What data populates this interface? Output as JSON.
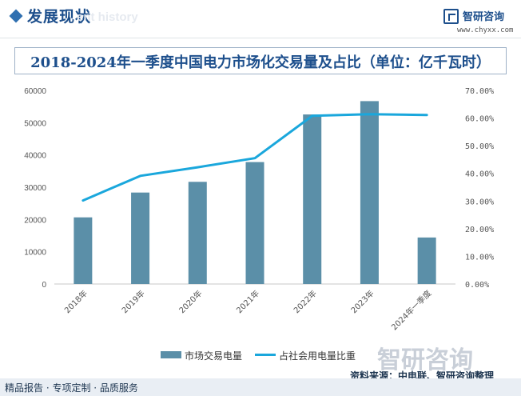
{
  "header": {
    "title": "发展现状",
    "ghost_text": "ent history",
    "brand_name": "智研咨询",
    "brand_url": "www.chyxx.com"
  },
  "chart_data": {
    "type": "bar",
    "title": "2018-2024年一季度中国电力市场化交易量及占比（单位：亿千瓦时）",
    "categories": [
      "2018年",
      "2019年",
      "2020年",
      "2021年",
      "2022年",
      "2023年",
      "2024年一季度"
    ],
    "series": [
      {
        "name": "市场交易电量",
        "type": "bar",
        "axis": "left",
        "values": [
          20654,
          28344,
          31663,
          37787,
          52543,
          56679,
          14415
        ]
      },
      {
        "name": "占社会用电量比重",
        "type": "line",
        "axis": "right",
        "values": [
          30.2,
          39.1,
          42.2,
          45.5,
          60.8,
          61.4,
          61.1
        ]
      }
    ],
    "y_left": {
      "min": 0,
      "max": 60000,
      "ticks": [
        "0",
        "10000",
        "20000",
        "30000",
        "40000",
        "50000",
        "60000"
      ]
    },
    "y_right": {
      "min": 0,
      "max": 70,
      "ticks": [
        "0.00%",
        "10.00%",
        "20.00%",
        "30.00%",
        "40.00%",
        "50.00%",
        "60.00%",
        "70.00%"
      ]
    },
    "grid": false,
    "legend_position": "bottom",
    "colors": {
      "bar": "#5b8fa8",
      "line": "#1aa7dc"
    }
  },
  "source": "资料来源：中电联、智研咨询整理",
  "footer": "精品报告 · 专项定制 · 品质服务",
  "watermark": "智研咨询"
}
